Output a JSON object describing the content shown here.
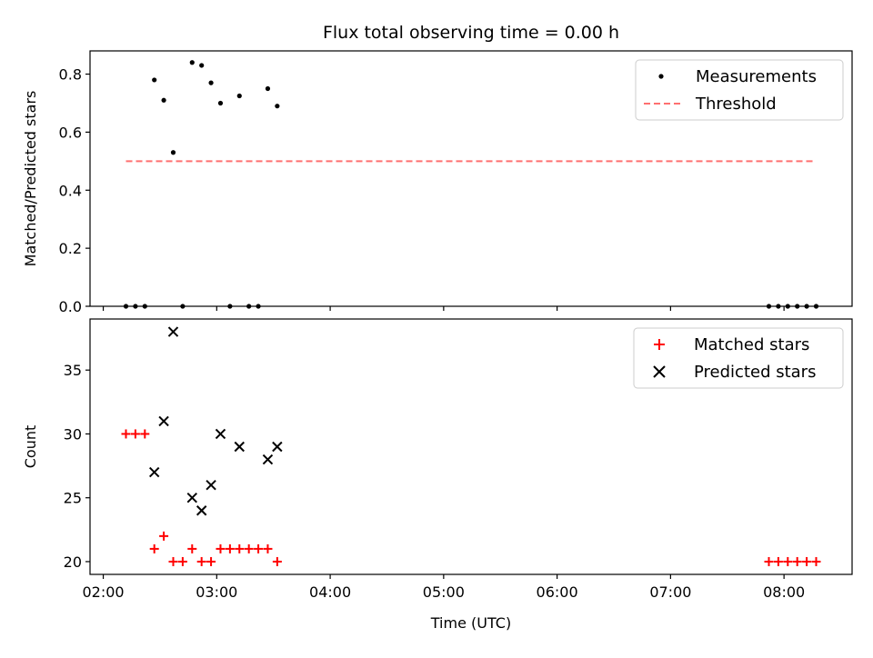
{
  "chart_data": [
    {
      "type": "scatter",
      "title": "Flux total observing time = 0.00 h",
      "xlabel": "",
      "ylabel": "Matched/Predicted stars",
      "xlim": [
        "01:53",
        "08:36"
      ],
      "ylim": [
        0,
        0.88
      ],
      "yticks": [
        "0.0",
        "0.2",
        "0.4",
        "0.6",
        "0.8"
      ],
      "xticks": [
        "02:00",
        "03:00",
        "04:00",
        "05:00",
        "06:00",
        "07:00",
        "08:00"
      ],
      "legend_position": "top-right",
      "series": [
        {
          "name": "Measurements",
          "marker": "dot",
          "color": "#000000",
          "points": [
            [
              "02:12",
              0
            ],
            [
              "02:17",
              0
            ],
            [
              "02:22",
              0
            ],
            [
              "02:27",
              0.78
            ],
            [
              "02:32",
              0.71
            ],
            [
              "02:37",
              0.53
            ],
            [
              "02:42",
              0
            ],
            [
              "02:47",
              0.84
            ],
            [
              "02:52",
              0.83
            ],
            [
              "02:57",
              0.77
            ],
            [
              "03:02",
              0.7
            ],
            [
              "03:07",
              0
            ],
            [
              "03:12",
              0.725
            ],
            [
              "03:17",
              0
            ],
            [
              "03:22",
              0
            ],
            [
              "03:27",
              0.75
            ],
            [
              "03:32",
              0.69
            ],
            [
              "07:52",
              0
            ],
            [
              "07:57",
              0
            ],
            [
              "08:02",
              0
            ],
            [
              "08:07",
              0
            ],
            [
              "08:12",
              0
            ],
            [
              "08:17",
              0
            ]
          ]
        },
        {
          "name": "Threshold",
          "marker": "dashed-line",
          "color": "#ff7070",
          "points": [
            [
              "02:12",
              0.5
            ],
            [
              "08:17",
              0.5
            ]
          ]
        }
      ]
    },
    {
      "type": "scatter",
      "title": "",
      "xlabel": "Time (UTC)",
      "ylabel": "Count",
      "xlim": [
        "01:53",
        "08:36"
      ],
      "ylim": [
        19,
        39
      ],
      "yticks": [
        "20",
        "25",
        "30",
        "35"
      ],
      "xticks": [
        "02:00",
        "03:00",
        "04:00",
        "05:00",
        "06:00",
        "07:00",
        "08:00"
      ],
      "legend_position": "top-right",
      "series": [
        {
          "name": "Matched stars",
          "marker": "plus",
          "color": "#ff0000",
          "points": [
            [
              "02:12",
              30
            ],
            [
              "02:17",
              30
            ],
            [
              "02:22",
              30
            ],
            [
              "02:27",
              21
            ],
            [
              "02:32",
              22
            ],
            [
              "02:37",
              20
            ],
            [
              "02:42",
              20
            ],
            [
              "02:47",
              21
            ],
            [
              "02:52",
              20
            ],
            [
              "02:57",
              20
            ],
            [
              "03:02",
              21
            ],
            [
              "03:07",
              21
            ],
            [
              "03:12",
              21
            ],
            [
              "03:17",
              21
            ],
            [
              "03:22",
              21
            ],
            [
              "03:27",
              21
            ],
            [
              "03:32",
              20
            ],
            [
              "07:52",
              20
            ],
            [
              "07:57",
              20
            ],
            [
              "08:02",
              20
            ],
            [
              "08:07",
              20
            ],
            [
              "08:12",
              20
            ],
            [
              "08:17",
              20
            ]
          ]
        },
        {
          "name": "Predicted stars",
          "marker": "x",
          "color": "#000000",
          "points": [
            [
              "02:27",
              27
            ],
            [
              "02:32",
              31
            ],
            [
              "02:37",
              38
            ],
            [
              "02:47",
              25
            ],
            [
              "02:52",
              24
            ],
            [
              "02:57",
              26
            ],
            [
              "03:02",
              30
            ],
            [
              "03:12",
              29
            ],
            [
              "03:27",
              28
            ],
            [
              "03:32",
              29
            ]
          ]
        }
      ]
    }
  ]
}
